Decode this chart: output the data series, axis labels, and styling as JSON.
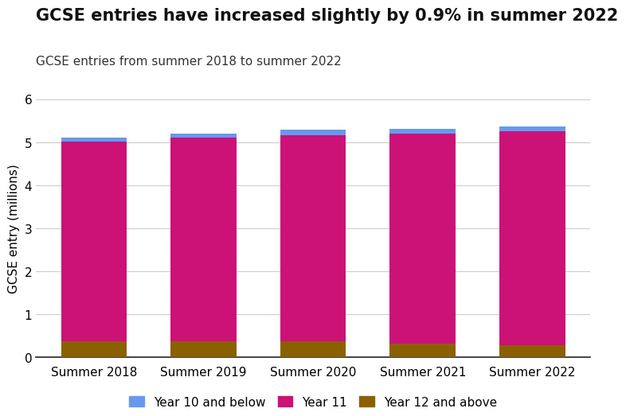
{
  "title": "GCSE entries have increased slightly by 0.9% in summer 2022",
  "subtitle": "GCSE entries from summer 2018 to summer 2022",
  "ylabel": "GCSE entry (millions)",
  "categories": [
    "Summer 2018",
    "Summer 2019",
    "Summer 2020",
    "Summer 2021",
    "Summer 2022"
  ],
  "year12_above": [
    0.37,
    0.38,
    0.38,
    0.32,
    0.28
  ],
  "year11": [
    4.65,
    4.72,
    4.79,
    4.88,
    4.98
  ],
  "year10_below": [
    0.09,
    0.1,
    0.13,
    0.12,
    0.1
  ],
  "color_year12": "#8B6000",
  "color_year11": "#CC1177",
  "color_year10": "#6699EE",
  "ylim": [
    0,
    6
  ],
  "yticks": [
    0,
    1,
    2,
    3,
    4,
    5,
    6
  ],
  "bar_width": 0.6,
  "title_fontsize": 15,
  "subtitle_fontsize": 11,
  "legend_labels": [
    "Year 10 and below",
    "Year 11",
    "Year 12 and above"
  ],
  "background_color": "#FFFFFF",
  "grid_color": "#CCCCCC"
}
